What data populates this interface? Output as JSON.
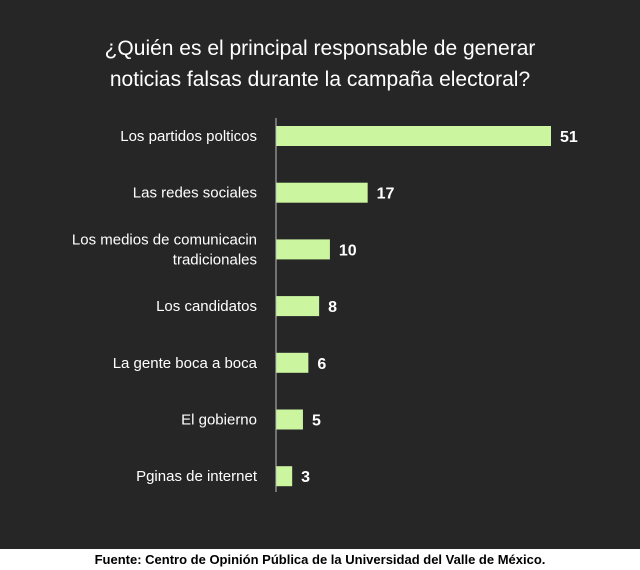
{
  "chart_data": {
    "type": "bar",
    "orientation": "horizontal",
    "title_lines": [
      "¿Quién es el principal responsable de generar",
      "noticias falsas durante la campaña electoral?"
    ],
    "xlabel": "",
    "ylabel": "",
    "categories": [
      [
        "Los partidos polticos"
      ],
      [
        "Las redes sociales"
      ],
      [
        "Los medios de comunicacin",
        "tradicionales"
      ],
      [
        "Los candidatos"
      ],
      [
        "La gente boca a boca"
      ],
      [
        "El gobierno"
      ],
      [
        "Pginas de internet"
      ]
    ],
    "values": [
      51,
      17,
      10,
      8,
      6,
      5,
      3
    ],
    "xlim": [
      0,
      51
    ],
    "grid": false,
    "legend": "none",
    "bar_color": "#ccf5a0",
    "background_color": "#262626",
    "text_color": "#ffffff"
  },
  "footer": {
    "source": "Fuente: Centro de Opinión Pública de la Universidad del Valle de México."
  }
}
